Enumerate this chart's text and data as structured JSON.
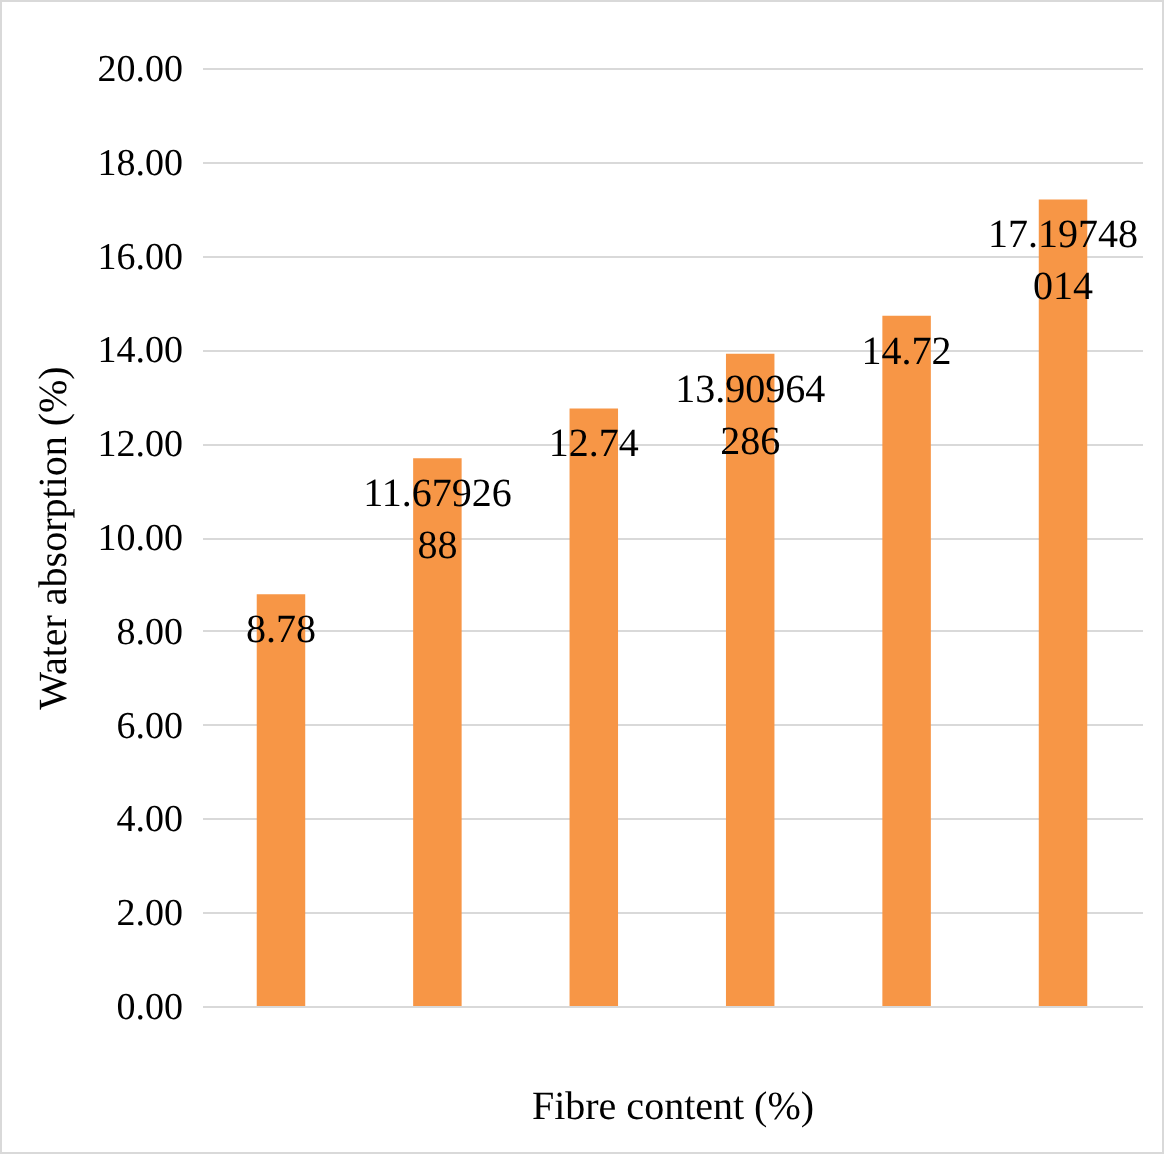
{
  "chart_data": {
    "type": "bar",
    "xlabel": "Fibre content (%)",
    "ylabel": "Water absorption (%)",
    "categories": [
      null,
      null,
      null,
      null,
      null,
      null
    ],
    "values": [
      8.78,
      11.6792688,
      12.74,
      13.90964286,
      14.72,
      17.19748014
    ],
    "color": "#f79646",
    "ylim": [
      0,
      20
    ],
    "yticks": [
      {
        "value": 0,
        "label": "0.00"
      },
      {
        "value": 2,
        "label": "2.00"
      },
      {
        "value": 4,
        "label": "4.00"
      },
      {
        "value": 6,
        "label": "6.00"
      },
      {
        "value": 8,
        "label": "8.00"
      },
      {
        "value": 10,
        "label": "10.00"
      },
      {
        "value": 12,
        "label": "12.00"
      },
      {
        "value": 14,
        "label": "14.00"
      },
      {
        "value": 16,
        "label": "16.00"
      },
      {
        "value": 18,
        "label": "18.00"
      },
      {
        "value": 20,
        "label": "20.00"
      }
    ],
    "grid": "y",
    "data_labels": true,
    "tick_labels": "y"
  }
}
